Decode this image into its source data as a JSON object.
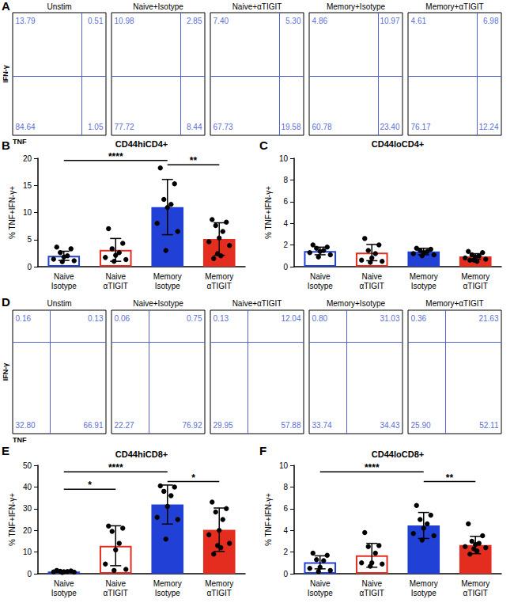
{
  "chart_data": [
    {
      "panel": "A",
      "type": "quadrant",
      "x_label": "TNF",
      "y_label": "IFN-γ",
      "color": "#2b3fc9",
      "plots": [
        {
          "title": "Unstim",
          "values": [
            13.79,
            0.51,
            84.64,
            1.05
          ],
          "value_labels": [
            "13.79",
            "0.51",
            "84.64",
            "1.05"
          ]
        },
        {
          "title": "Naive+Isotype",
          "values": [
            10.98,
            2.85,
            77.72,
            8.44
          ],
          "value_labels": [
            "10.98",
            "2.85",
            "77.72",
            "8.44"
          ]
        },
        {
          "title": "Naive+αTIGIT",
          "values": [
            7.4,
            5.3,
            67.73,
            19.58
          ],
          "value_labels": [
            "7.40",
            "5.30",
            "67.73",
            "19.58"
          ]
        },
        {
          "title": "Memory+Isotype",
          "values": [
            4.86,
            10.97,
            60.78,
            23.4
          ],
          "value_labels": [
            "4.86",
            "10.97",
            "60.78",
            "23.40"
          ]
        },
        {
          "title": "Memory+αTIGIT",
          "values": [
            4.61,
            6.98,
            76.17,
            12.24
          ],
          "value_labels": [
            "4.61",
            "6.98",
            "76.17",
            "12.24"
          ]
        }
      ]
    },
    {
      "panel": "B",
      "type": "bar",
      "title": "CD44hiCD4+",
      "y_label": "% TNF+IFN-γ+",
      "categories": [
        "Naive\nIsotype",
        "Naive\nαTIGIT",
        "Memory\nIsotype",
        "Memory\nαTIGIT"
      ],
      "values": [
        2.0,
        3.1,
        11.0,
        5.1
      ],
      "errors": [
        0.85,
        2.1,
        5.1,
        3.0
      ],
      "points": [
        [
          3.6,
          3.3,
          2.6,
          2.0,
          1.8,
          1.4,
          1.1,
          0.9
        ],
        [
          7.0,
          4.3,
          3.3,
          2.6,
          2.1,
          1.7,
          1.3,
          1.0
        ],
        [
          18.2,
          15.3,
          12.4,
          11.5,
          10.9,
          8.0,
          6.5,
          3.0
        ],
        [
          8.7,
          8.2,
          7.6,
          6.5,
          5.3,
          4.6,
          3.9,
          2.4,
          2.0,
          1.5
        ]
      ],
      "colors": [
        "#2140d6",
        "#e52d1f",
        "#2140d6",
        "#e52d1f"
      ],
      "ylim": [
        0,
        20
      ],
      "yticks": [
        0,
        5,
        10,
        15,
        20
      ],
      "grid": false,
      "annotations": [
        {
          "text": "****",
          "from": "Naive\nIsotype",
          "to": "Memory\nIsotype",
          "y": 19.6
        },
        {
          "text": "**",
          "from": "Memory\nIsotype",
          "to": "Memory\nαTIGIT",
          "y": 18.8
        }
      ]
    },
    {
      "panel": "C",
      "type": "bar",
      "title": "CD44loCD4+",
      "y_label": "% TNF+IFN-γ+",
      "categories": [
        "Naive\nIsotype",
        "Naive\nαTIGIT",
        "Memory\nIsotype",
        "Memory\nαTIGIT"
      ],
      "values": [
        1.45,
        1.3,
        1.4,
        0.95
      ],
      "errors": [
        0.35,
        0.75,
        0.3,
        0.25
      ],
      "points": [
        [
          2.0,
          1.8,
          1.7,
          1.5,
          1.4,
          1.3,
          1.1,
          0.9
        ],
        [
          2.6,
          2.0,
          1.5,
          1.2,
          0.8,
          0.6,
          0.5,
          0.4
        ],
        [
          1.7,
          1.6,
          1.5,
          1.4,
          1.3,
          1.2,
          1.1,
          1.0
        ],
        [
          1.4,
          1.3,
          1.1,
          1.0,
          0.9,
          0.8,
          0.7,
          0.6,
          0.5,
          0.6
        ]
      ],
      "colors": [
        "#2140d6",
        "#e52d1f",
        "#2140d6",
        "#e52d1f"
      ],
      "ylim": [
        0,
        10
      ],
      "yticks": [
        0,
        2,
        4,
        6,
        8,
        10
      ],
      "grid": false,
      "annotations": []
    },
    {
      "panel": "D",
      "type": "quadrant",
      "x_label": "TNF",
      "y_label": "IFN-γ",
      "color": "#2b3fc9",
      "plots": [
        {
          "title": "Unstim",
          "values": [
            0.16,
            0.13,
            32.8,
            66.91
          ],
          "value_labels": [
            "0.16",
            "0.13",
            "32.80",
            "66.91"
          ]
        },
        {
          "title": "Naive+Isotype",
          "values": [
            0.06,
            0.75,
            22.27,
            76.92
          ],
          "value_labels": [
            "0.06",
            "0.75",
            "22.27",
            "76.92"
          ]
        },
        {
          "title": "Naive+αTIGIT",
          "values": [
            0.13,
            12.04,
            29.95,
            57.88
          ],
          "value_labels": [
            "0.13",
            "12.04",
            "29.95",
            "57.88"
          ]
        },
        {
          "title": "Memory+Isotype",
          "values": [
            0.8,
            31.03,
            33.74,
            34.43
          ],
          "value_labels": [
            "0.80",
            "31.03",
            "33.74",
            "34.43"
          ]
        },
        {
          "title": "Memory+αTIGIT",
          "values": [
            0.36,
            21.63,
            25.9,
            52.11
          ],
          "value_labels": [
            "0.36",
            "21.63",
            "25.90",
            "52.11"
          ]
        }
      ]
    },
    {
      "panel": "E",
      "type": "bar",
      "title": "CD44hiCD8+",
      "y_label": "% TNF+IFN-γ+",
      "categories": [
        "Naive\nIsotype",
        "Naive\nαTIGIT",
        "Memory\nIsotype",
        "Memory\nαTIGIT"
      ],
      "values": [
        1.0,
        12.9,
        31.9,
        20.3
      ],
      "errors": [
        0.4,
        9.2,
        9.0,
        10.0
      ],
      "points": [
        [
          1.5,
          1.3,
          1.1,
          1.0,
          0.9,
          0.8,
          0.7,
          0.6
        ],
        [
          22.0,
          21.0,
          19.5,
          14.0,
          11.0,
          4.5,
          2.0,
          1.5
        ],
        [
          40.5,
          40.0,
          38.0,
          36.0,
          31.0,
          26.0,
          25.0,
          16.0
        ],
        [
          33.0,
          30.0,
          28.5,
          25.0,
          20.0,
          18.0,
          14.0,
          13.0,
          12.0,
          9.0
        ]
      ],
      "colors": [
        "#2140d6",
        "#e52d1f",
        "#2140d6",
        "#e52d1f"
      ],
      "ylim": [
        0,
        50
      ],
      "yticks": [
        0,
        10,
        20,
        30,
        40,
        50
      ],
      "grid": false,
      "annotations": [
        {
          "text": "*",
          "from": "Naive\nIsotype",
          "to": "Naive\nαTIGIT",
          "y": 39
        },
        {
          "text": "****",
          "from": "Naive\nIsotype",
          "to": "Memory\nIsotype",
          "y": 47
        },
        {
          "text": "*",
          "from": "Memory\nIsotype",
          "to": "Memory\nαTIGIT",
          "y": 42.5
        }
      ]
    },
    {
      "panel": "F",
      "type": "bar",
      "title": "CD44loCD8+",
      "y_label": "% TNF+IFN-γ+",
      "categories": [
        "Naive\nIsotype",
        "Naive\nαTIGIT",
        "Memory\nIsotype",
        "Memory\nαTIGIT"
      ],
      "values": [
        1.05,
        1.7,
        4.45,
        2.65
      ],
      "errors": [
        0.6,
        1.1,
        1.2,
        0.8
      ],
      "points": [
        [
          1.9,
          1.7,
          1.3,
          1.2,
          0.6,
          0.5,
          0.3,
          0.2
        ],
        [
          3.8,
          2.6,
          2.5,
          1.9,
          1.0,
          1.0,
          0.9,
          0.7
        ],
        [
          6.3,
          5.4,
          5.0,
          4.6,
          4.2,
          3.7,
          3.5,
          3.1
        ],
        [
          4.6,
          3.5,
          3.0,
          2.8,
          2.7,
          2.5,
          2.4,
          2.3,
          2.1,
          1.8
        ]
      ],
      "colors": [
        "#2140d6",
        "#e52d1f",
        "#2140d6",
        "#e52d1f"
      ],
      "ylim": [
        0,
        10
      ],
      "yticks": [
        0,
        2,
        4,
        6,
        8,
        10
      ],
      "grid": false,
      "annotations": [
        {
          "text": "****",
          "from": "Naive\nIsotype",
          "to": "Memory\nIsotype",
          "y": 9.4
        },
        {
          "text": "**",
          "from": "Memory\nIsotype",
          "to": "Memory\nαTIGIT",
          "y": 8.5
        }
      ]
    }
  ]
}
